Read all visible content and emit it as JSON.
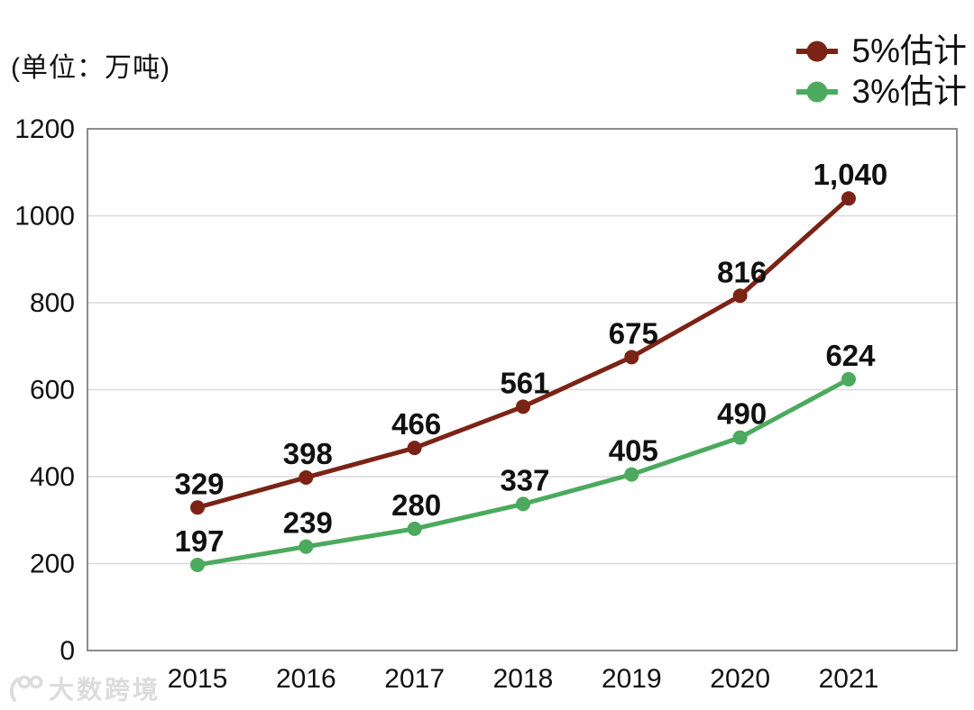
{
  "unit_label": "(单位：万吨)",
  "legend": [
    {
      "label": "5%估计",
      "color": "#7B2315"
    },
    {
      "label": "3%估计",
      "color": "#4BAA5D"
    }
  ],
  "watermark": {
    "text": "大数跨境"
  },
  "colors": {
    "series_5pct": "#7B2315",
    "series_3pct": "#4BAA5D",
    "plot_border": "#808080",
    "gridline": "#D9D9D9",
    "label_text": "#111111",
    "watermark_gray": "#DCDCDC"
  },
  "chart_data": {
    "type": "line",
    "title": "",
    "unit": "万吨",
    "x": [
      "2015",
      "2016",
      "2017",
      "2018",
      "2019",
      "2020",
      "2021"
    ],
    "series": [
      {
        "name": "5%估计",
        "color": "#7B2315",
        "values": [
          329,
          398,
          466,
          561,
          675,
          816,
          1040
        ],
        "labels": [
          "329",
          "398",
          "466",
          "561",
          "675",
          "816",
          "1,040"
        ]
      },
      {
        "name": "3%估计",
        "color": "#4BAA5D",
        "values": [
          197,
          239,
          280,
          337,
          405,
          490,
          624
        ],
        "labels": [
          "197",
          "239",
          "280",
          "337",
          "405",
          "490",
          "624"
        ]
      }
    ],
    "ylim": [
      0,
      1200
    ],
    "yticks": [
      0,
      200,
      400,
      600,
      800,
      1000,
      1200
    ],
    "grid": true,
    "legend_position": "top-right",
    "data_labels": true
  }
}
